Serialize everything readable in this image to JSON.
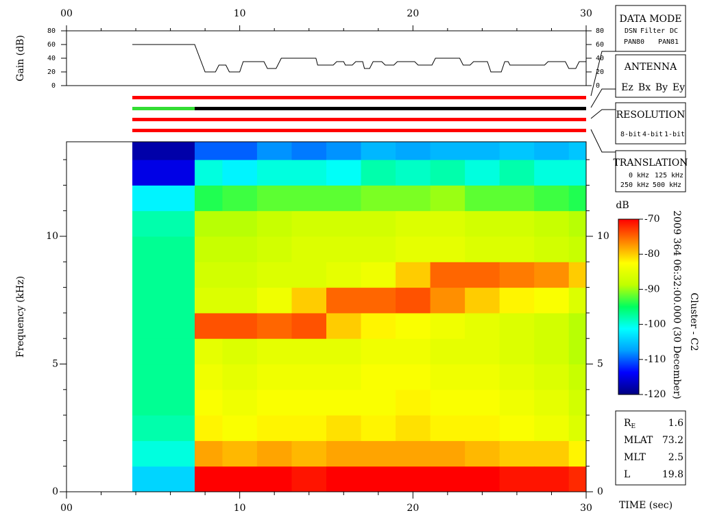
{
  "chart_data": [
    {
      "type": "line",
      "ylabel": "Gain (dB)",
      "x": [
        3.8,
        7.4,
        8.0,
        8.6,
        8.8,
        9.2,
        9.4,
        10.0,
        10.2,
        11.4,
        11.6,
        12.1,
        12.4,
        14.4,
        14.5,
        15.4,
        15.6,
        16.0,
        16.1,
        16.5,
        16.7,
        17.1,
        17.2,
        17.5,
        17.7,
        18.2,
        18.4,
        18.9,
        19.1,
        20.1,
        20.3,
        21.1,
        21.3,
        22.7,
        22.9,
        23.3,
        23.5,
        24.3,
        24.5,
        25.1,
        25.3,
        25.5,
        25.6,
        27.6,
        27.8,
        28.8,
        29.0,
        29.4,
        29.6,
        30.0
      ],
      "values": [
        60,
        60,
        20,
        20,
        30,
        30,
        20,
        20,
        35,
        35,
        25,
        25,
        40,
        40,
        30,
        30,
        35,
        35,
        30,
        30,
        35,
        35,
        25,
        25,
        35,
        35,
        30,
        30,
        35,
        35,
        30,
        30,
        40,
        40,
        30,
        30,
        35,
        35,
        20,
        20,
        35,
        35,
        30,
        30,
        35,
        35,
        25,
        25,
        35,
        35
      ],
      "color": "#000000",
      "xlim": [
        0,
        30
      ],
      "xticks": [
        {
          "value": 0,
          "label": "00"
        },
        10,
        20,
        30
      ],
      "xticks_minor": [
        2,
        4,
        6,
        8,
        12,
        14,
        16,
        18,
        22,
        24,
        26,
        28
      ],
      "ylim": [
        0,
        80
      ],
      "yticks": [
        0,
        20,
        40,
        60,
        80
      ],
      "mode_bars": [
        [
          {
            "x": [
              3.8,
              30
            ],
            "color": "#ff0000"
          }
        ],
        [
          {
            "x": [
              3.8,
              7.4
            ],
            "color": "#33dd33"
          },
          {
            "x": [
              7.4,
              30
            ],
            "color": "#000000"
          }
        ],
        [
          {
            "x": [
              3.8,
              30
            ],
            "color": "#ff0000"
          }
        ],
        [
          {
            "x": [
              3.8,
              30
            ],
            "color": "#ff0000"
          }
        ]
      ]
    },
    {
      "type": "heatmap",
      "ylabel": "Frequency (kHz)",
      "xlabel": "TIME (sec)",
      "x_bins": [
        3.8,
        7.4,
        9,
        11,
        13,
        15,
        17,
        19,
        21,
        23,
        25,
        27,
        29,
        30
      ],
      "y_bins": [
        0,
        1,
        2,
        3,
        4,
        5,
        6,
        7,
        8,
        9,
        10,
        11,
        12,
        13,
        13.7
      ],
      "values": [
        [
          -104,
          -100,
          -98,
          -97,
          -97,
          -97,
          -97,
          -97,
          -97,
          -97,
          -98,
          -102,
          -115,
          -118
        ],
        [
          -70,
          -78,
          -82,
          -83,
          -84,
          -85,
          -74,
          -86,
          -87,
          -88,
          -89,
          -94,
          -100,
          -110
        ],
        [
          -70,
          -79,
          -83,
          -84,
          -85,
          -86,
          -74,
          -86,
          -87,
          -88,
          -89,
          -93,
          -102,
          -110
        ],
        [
          -70,
          -78,
          -82,
          -83,
          -84,
          -85,
          -75,
          -84,
          -86,
          -87,
          -88,
          -92,
          -100,
          -108
        ],
        [
          -71,
          -79,
          -82,
          -83,
          -84,
          -85,
          -74,
          -80,
          -86,
          -86,
          -87,
          -92,
          -100,
          -109
        ],
        [
          -70,
          -78,
          -81,
          -83,
          -84,
          -85,
          -80,
          -75,
          -85,
          -86,
          -87,
          -92,
          -101,
          -108
        ],
        [
          -70,
          -78,
          -82,
          -83,
          -83,
          -84,
          -82,
          -75,
          -84,
          -86,
          -87,
          -91,
          -98,
          -106
        ],
        [
          -70,
          -78,
          -81,
          -82,
          -83,
          -84,
          -83,
          -74,
          -80,
          -85,
          -86,
          -91,
          -99,
          -107
        ],
        [
          -70,
          -78,
          -82,
          -83,
          -84,
          -85,
          -84,
          -77,
          -75,
          -85,
          -86,
          -90,
          -98,
          -106
        ],
        [
          -70,
          -79,
          -82,
          -83,
          -84,
          -85,
          -85,
          -80,
          -75,
          -86,
          -87,
          -92,
          -100,
          -106
        ],
        [
          -71,
          -80,
          -83,
          -84,
          -85,
          -86,
          -86,
          -82,
          -76,
          -86,
          -87,
          -92,
          -98,
          -105
        ],
        [
          -71,
          -80,
          -84,
          -85,
          -86,
          -87,
          -87,
          -83,
          -77,
          -87,
          -88,
          -93,
          -100,
          -106
        ],
        [
          -72,
          -82,
          -86,
          -87,
          -88,
          -89,
          -89,
          -86,
          -80,
          -88,
          -89,
          -94,
          -100,
          -105
        ]
      ],
      "xlim": [
        0,
        30
      ],
      "xticks": [
        {
          "value": 0,
          "label": "00"
        },
        10,
        20,
        30
      ],
      "xticks_minor": [
        2,
        4,
        6,
        8,
        12,
        14,
        16,
        18,
        22,
        24,
        26,
        28
      ],
      "ylim": [
        0,
        13.7
      ],
      "yticks": [
        0,
        5,
        10
      ],
      "yticks_minor": [
        1,
        2,
        3,
        4,
        6,
        7,
        8,
        9,
        11,
        12,
        13
      ],
      "colorbar": {
        "label": "dB",
        "lim": [
          -120,
          -70
        ],
        "ticks": [
          -120,
          -110,
          -100,
          -90,
          -80,
          -70
        ],
        "colormap": [
          "#000080",
          "#0000ff",
          "#00a0ff",
          "#00ffff",
          "#00ff60",
          "#c0ff00",
          "#ffff00",
          "#ff8000",
          "#ff0000"
        ]
      },
      "side_labels": [
        "2009 364 06:32:00.000 (30 December)",
        "Cluster - C2"
      ]
    }
  ],
  "panels": {
    "data_mode": {
      "title": "DATA MODE",
      "items": [
        {
          "text": "DSN",
          "color": "#ff0000"
        },
        {
          "text": "Filter",
          "color": "#00c000"
        },
        {
          "text": "DC",
          "color": "#0000ff"
        },
        {
          "text": "PAN80",
          "color": "#000000"
        },
        {
          "text": "PAN81",
          "color": "#00c8c8"
        }
      ]
    },
    "antenna": {
      "title": "ANTENNA",
      "items": [
        {
          "text": "Ez",
          "color": "#ff0000"
        },
        {
          "text": "Bx",
          "color": "#00c000"
        },
        {
          "text": "By",
          "color": "#0000ff"
        },
        {
          "text": "Ey",
          "color": "#000000"
        }
      ]
    },
    "resolution": {
      "title": "RESOLUTION",
      "items": [
        {
          "text": "8-bit",
          "color": "#ff0000"
        },
        {
          "text": "4-bit",
          "color": "#00c000"
        },
        {
          "text": "1-bit",
          "color": "#0000ff"
        }
      ]
    },
    "translation": {
      "title": "TRANSLATION",
      "items": [
        {
          "text": "0 kHz",
          "color": "#ff0000"
        },
        {
          "text": "125 kHz",
          "color": "#00c000"
        },
        {
          "text": "250 kHz",
          "color": "#0000ff"
        },
        {
          "text": "500 kHz",
          "color": "#000000"
        }
      ]
    },
    "info": [
      {
        "label": "R",
        "sub": "E",
        "value": 1.6
      },
      {
        "label": "MLAT",
        "value": 73.2
      },
      {
        "label": "MLT",
        "value": 2.5
      },
      {
        "label": "L",
        "value": 19.8
      }
    ]
  }
}
